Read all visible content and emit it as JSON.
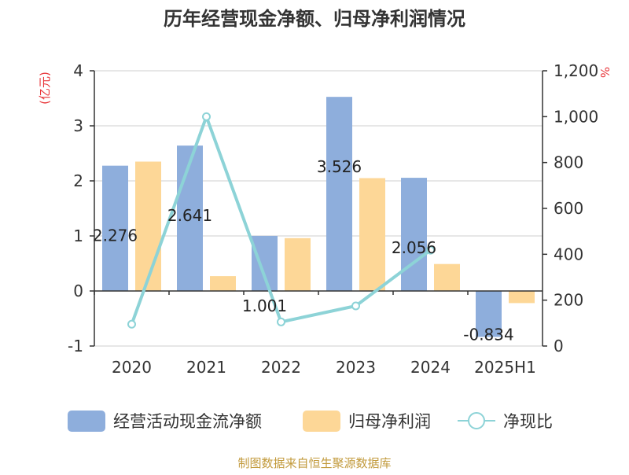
{
  "chart_data": {
    "type": "bar",
    "title": "历年经营现金净额、归母净利润情况",
    "categories": [
      "2020",
      "2021",
      "2022",
      "2023",
      "2024",
      "2025H1"
    ],
    "y_left": {
      "label": "(亿元)",
      "ticks": [
        "4",
        "3",
        "2",
        "1",
        "0",
        "-1"
      ],
      "range": [
        -1,
        4
      ]
    },
    "y_right": {
      "label": "%",
      "ticks": [
        "1,200",
        "1,000",
        "800",
        "600",
        "400",
        "200",
        "0"
      ],
      "range": [
        0,
        1200
      ]
    },
    "series": [
      {
        "name": "经营活动现金流净额",
        "type": "bar",
        "axis": "left",
        "color": "#8eaedc",
        "values": [
          2.276,
          2.641,
          1.001,
          3.526,
          2.056,
          -0.834
        ],
        "labels": [
          "2.276",
          "2.641",
          "1.001",
          "3.526",
          "2.056",
          "-0.834"
        ]
      },
      {
        "name": "归母净利润",
        "type": "bar",
        "axis": "left",
        "color": "#fdd797",
        "values": [
          2.35,
          0.27,
          0.96,
          2.05,
          0.49,
          -0.22
        ]
      },
      {
        "name": "净现比",
        "type": "line",
        "axis": "right",
        "color": "#8dd3d7",
        "values": [
          95,
          1000,
          105,
          175,
          418,
          null
        ]
      }
    ],
    "grid": true,
    "legend_position": "bottom"
  },
  "source": "制图数据来自恒生聚源数据库"
}
